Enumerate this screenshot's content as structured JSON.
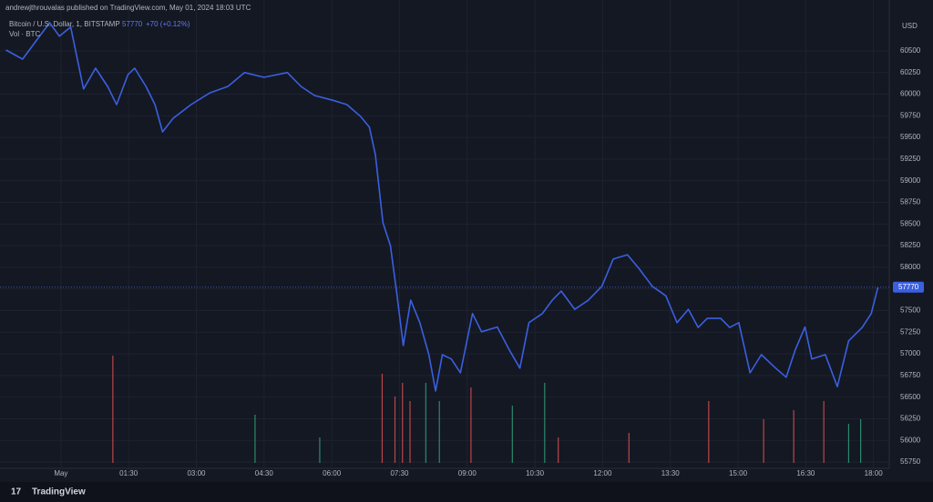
{
  "header": "andrewjthrouvalas published on TradingView.com, May 01, 2024 18:03 UTC",
  "footer": "TradingView",
  "chart_data": {
    "type": "line",
    "symbol": "Bitcoin / U.S. Dollar, 1, BITSTAMP",
    "last": "57770",
    "change": "+70 (+0.12%)",
    "volume_label": "Vol · BTC",
    "currency": "USD",
    "xlim": [
      -81,
      1101
    ],
    "ylim": [
      55677,
      61088
    ],
    "yticks": [
      60500,
      60250,
      60000,
      59750,
      59500,
      59250,
      59000,
      58750,
      58500,
      58250,
      58000,
      57750,
      57500,
      57250,
      57000,
      56750,
      56500,
      56250,
      56000,
      55750
    ],
    "xticks": [
      {
        "value": 0,
        "label": "May"
      },
      {
        "value": 90,
        "label": "01:30"
      },
      {
        "value": 180,
        "label": "03:00"
      },
      {
        "value": 270,
        "label": "04:30"
      },
      {
        "value": 360,
        "label": "06:00"
      },
      {
        "value": 450,
        "label": "07:30"
      },
      {
        "value": 540,
        "label": "09:00"
      },
      {
        "value": 630,
        "label": "10:30"
      },
      {
        "value": 720,
        "label": "12:00"
      },
      {
        "value": 810,
        "label": "13:30"
      },
      {
        "value": 900,
        "label": "15:00"
      },
      {
        "value": 990,
        "label": "16:30"
      },
      {
        "value": 1080,
        "label": "18:00"
      }
    ],
    "grid": true,
    "series": [
      {
        "name": "Bitcoin / U.S. Dollar",
        "color": "#3b5fe0",
        "x": [
          -73,
          -51,
          -33,
          -15,
          -2,
          13,
          30,
          46,
          62,
          74,
          89,
          98,
          113,
          125,
          135,
          149,
          173,
          198,
          222,
          244,
          270,
          301,
          319,
          337,
          361,
          380,
          398,
          410,
          418,
          428,
          438,
          446,
          455,
          465,
          477,
          489,
          498,
          507,
          519,
          531,
          547,
          559,
          580,
          596,
          610,
          622,
          640,
          653,
          665,
          683,
          701,
          719,
          734,
          753,
          768,
          786,
          804,
          819,
          834,
          847,
          859,
          877,
          889,
          901,
          916,
          931,
          950,
          964,
          976,
          989,
          998,
          1016,
          1032,
          1047,
          1065,
          1077,
          1086
        ],
        "values": [
          60510,
          60405,
          60615,
          60825,
          60670,
          60775,
          60060,
          60300,
          60090,
          59880,
          60225,
          60300,
          60090,
          59880,
          59565,
          59720,
          59880,
          60015,
          60090,
          60250,
          60195,
          60250,
          60090,
          59985,
          59930,
          59880,
          59745,
          59620,
          59300,
          58515,
          58250,
          57725,
          57095,
          57620,
          57360,
          56990,
          56570,
          56990,
          56940,
          56780,
          57465,
          57255,
          57310,
          57045,
          56835,
          57360,
          57465,
          57620,
          57725,
          57515,
          57620,
          57780,
          58095,
          58145,
          57990,
          57780,
          57670,
          57360,
          57515,
          57305,
          57410,
          57410,
          57305,
          57360,
          56780,
          56990,
          56835,
          56730,
          57045,
          57310,
          56940,
          56990,
          56620,
          57150,
          57305,
          57465,
          57770
        ]
      }
    ],
    "volume": {
      "vlim": [
        0,
        130
      ],
      "x": [
        69,
        258,
        344,
        427,
        444,
        454,
        464,
        485,
        503,
        545,
        600,
        643,
        661,
        755,
        861,
        934,
        974,
        1014,
        1047,
        1063
      ],
      "values": [
        118,
        53,
        28,
        98,
        73,
        88,
        68,
        88,
        68,
        83,
        63,
        88,
        28,
        33,
        68,
        48,
        58,
        68,
        43,
        48
      ],
      "colors": [
        "#b9474a",
        "#2c8a6c",
        "#2c8a6c",
        "#b9474a",
        "#b9474a",
        "#b9474a",
        "#b9474a",
        "#2c8a6c",
        "#2c8a6c",
        "#b9474a",
        "#2c8a6c",
        "#2c8a6c",
        "#b9474a",
        "#b9474a",
        "#b9474a",
        "#b9474a",
        "#b9474a",
        "#b9474a",
        "#2c8a6c",
        "#2c8a6c"
      ]
    }
  }
}
